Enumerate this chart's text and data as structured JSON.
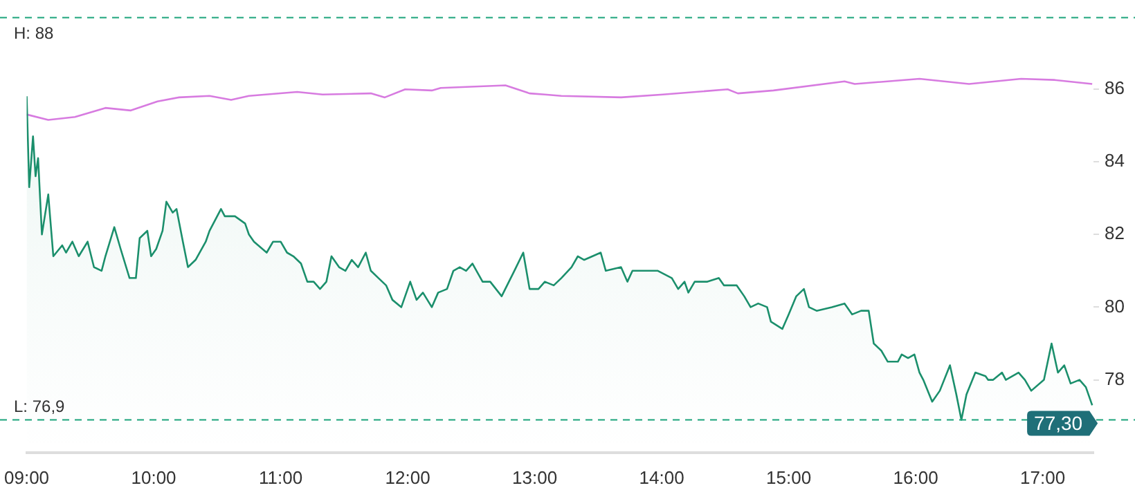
{
  "chart_data": {
    "type": "line",
    "xlim": [
      9,
      17.4
    ],
    "xticks": [
      {
        "value": 9,
        "label": "09:00"
      },
      {
        "value": 10,
        "label": "10:00"
      },
      {
        "value": 11,
        "label": "11:00"
      },
      {
        "value": 12,
        "label": "12:00"
      },
      {
        "value": 13,
        "label": "13:00"
      },
      {
        "value": 14,
        "label": "14:00"
      },
      {
        "value": 15,
        "label": "15:00"
      },
      {
        "value": 16,
        "label": "16:00"
      },
      {
        "value": 17,
        "label": "17:00"
      }
    ],
    "ylim": [
      76,
      88
    ],
    "yticks": [
      78,
      80,
      82,
      84,
      86
    ],
    "grid": false,
    "legend": false,
    "series": [
      {
        "type": "area",
        "color": "#1b8f6c",
        "x": [
          9.0,
          9.02,
          9.05,
          9.07,
          9.09,
          9.12,
          9.17,
          9.21,
          9.28,
          9.31,
          9.36,
          9.41,
          9.48,
          9.53,
          9.59,
          9.62,
          9.69,
          9.74,
          9.81,
          9.86,
          9.89,
          9.95,
          9.98,
          10.02,
          10.07,
          10.1,
          10.15,
          10.18,
          10.23,
          10.27,
          10.33,
          10.41,
          10.44,
          10.53,
          10.56,
          10.64,
          10.72,
          10.75,
          10.79,
          10.89,
          10.94,
          11.0,
          11.05,
          11.1,
          11.16,
          11.21,
          11.26,
          11.31,
          11.36,
          11.4,
          11.46,
          11.51,
          11.56,
          11.61,
          11.67,
          11.71,
          11.77,
          11.83,
          11.88,
          11.95,
          12.02,
          12.07,
          12.12,
          12.19,
          12.24,
          12.31,
          12.36,
          12.41,
          12.46,
          12.51,
          12.59,
          12.65,
          12.74,
          12.84,
          12.91,
          12.96,
          13.03,
          13.08,
          13.15,
          13.21,
          13.29,
          13.34,
          13.39,
          13.52,
          13.56,
          13.68,
          13.73,
          13.77,
          13.97,
          14.08,
          14.13,
          14.18,
          14.21,
          14.26,
          14.36,
          14.45,
          14.49,
          14.59,
          14.65,
          14.7,
          14.76,
          14.83,
          14.86,
          14.95,
          15.0,
          15.06,
          15.12,
          15.16,
          15.22,
          15.34,
          15.44,
          15.5,
          15.57,
          15.63,
          15.67,
          15.73,
          15.78,
          15.86,
          15.89,
          15.94,
          15.99,
          16.03,
          16.06,
          16.13,
          16.19,
          16.27,
          16.32,
          16.36,
          16.4,
          16.47,
          16.55,
          16.57,
          16.61,
          16.68,
          16.71,
          16.81,
          16.86,
          16.91,
          17.01,
          17.07,
          17.12,
          17.17,
          17.22,
          17.29,
          17.34,
          17.39
        ],
        "values": [
          85.8,
          83.3,
          84.7,
          83.6,
          84.1,
          82.0,
          83.1,
          81.4,
          81.7,
          81.5,
          81.8,
          81.4,
          81.8,
          81.1,
          81.0,
          81.4,
          82.2,
          81.6,
          80.8,
          80.8,
          81.9,
          82.1,
          81.4,
          81.6,
          82.1,
          82.9,
          82.6,
          82.7,
          81.8,
          81.1,
          81.3,
          81.8,
          82.1,
          82.7,
          82.5,
          82.5,
          82.3,
          82.0,
          81.8,
          81.5,
          81.8,
          81.8,
          81.5,
          81.4,
          81.2,
          80.7,
          80.7,
          80.5,
          80.7,
          81.4,
          81.1,
          81.0,
          81.3,
          81.1,
          81.5,
          81.0,
          80.8,
          80.6,
          80.2,
          80.0,
          80.7,
          80.2,
          80.4,
          80.0,
          80.4,
          80.5,
          81.0,
          81.1,
          81.0,
          81.2,
          80.7,
          80.7,
          80.3,
          81.0,
          81.5,
          80.5,
          80.5,
          80.7,
          80.6,
          80.8,
          81.1,
          81.4,
          81.3,
          81.5,
          81.0,
          81.1,
          80.7,
          81.0,
          81.0,
          80.8,
          80.5,
          80.7,
          80.4,
          80.7,
          80.7,
          80.8,
          80.6,
          80.6,
          80.3,
          80.0,
          80.1,
          80.0,
          79.6,
          79.4,
          79.8,
          80.3,
          80.5,
          80.0,
          79.9,
          80.0,
          80.1,
          79.8,
          79.9,
          79.9,
          79.0,
          78.8,
          78.5,
          78.5,
          78.7,
          78.6,
          78.7,
          78.2,
          78.0,
          77.4,
          77.7,
          78.4,
          77.6,
          76.9,
          77.6,
          78.2,
          78.1,
          78.0,
          78.0,
          78.2,
          78.0,
          78.2,
          78.0,
          77.7,
          78.0,
          79.0,
          78.2,
          78.4,
          77.9,
          78.0,
          77.8,
          77.3
        ]
      },
      {
        "type": "line",
        "color": "#d77be0",
        "x": [
          9.0,
          9.17,
          9.38,
          9.62,
          9.82,
          10.03,
          10.2,
          10.44,
          10.61,
          10.75,
          11.13,
          11.33,
          11.71,
          11.82,
          11.98,
          12.19,
          12.26,
          12.77,
          12.96,
          13.08,
          13.21,
          13.68,
          14.01,
          14.52,
          14.6,
          14.88,
          15.44,
          15.52,
          16.03,
          16.42,
          16.83,
          17.09,
          17.39
        ],
        "values": [
          85.3,
          85.15,
          85.23,
          85.48,
          85.41,
          85.66,
          85.77,
          85.81,
          85.7,
          85.81,
          85.92,
          85.85,
          85.88,
          85.77,
          85.99,
          85.96,
          86.03,
          86.1,
          85.88,
          85.85,
          85.81,
          85.77,
          85.85,
          85.99,
          85.88,
          85.96,
          86.21,
          86.14,
          86.28,
          86.14,
          86.28,
          86.25,
          86.14
        ]
      }
    ],
    "ref_lines": [
      {
        "axis": "y",
        "value": 88,
        "label": "H: 88",
        "color": "#1aa37a",
        "line_style": "dashed"
      },
      {
        "axis": "y",
        "value": 76.9,
        "label": "L: 76,9",
        "color": "#1aa37a",
        "line_style": "dashed"
      }
    ],
    "annotations": [
      {
        "text": "77,30",
        "x": 17.39,
        "y": 77.3
      }
    ]
  }
}
